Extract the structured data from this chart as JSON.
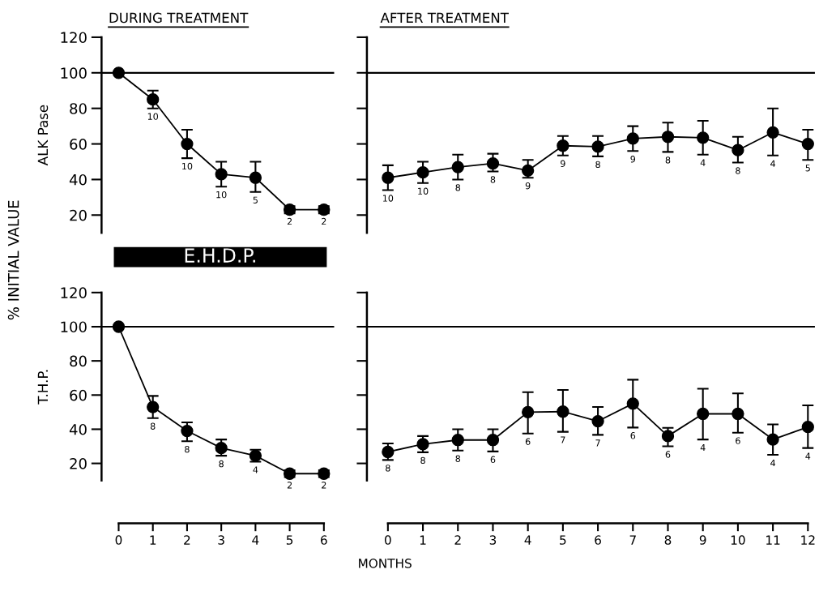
{
  "chart_data": [
    {
      "type": "line",
      "title": "DURING TREATMENT",
      "ylabel": "ALK Pase",
      "x": [
        0,
        1,
        2,
        3,
        4,
        5,
        6
      ],
      "xlim": [
        -0.5,
        6.3
      ],
      "ylim": [
        10,
        120
      ],
      "yticks": [
        20,
        40,
        60,
        80,
        100,
        120
      ],
      "tick_labels": "y",
      "marker": "circle",
      "line_style": "solid",
      "grid": false,
      "legend": false,
      "series": [
        {
          "color": "#000000",
          "values": [
            100,
            85,
            60,
            43,
            41,
            23,
            23
          ],
          "errors": [
            null,
            [
              80,
              90
            ],
            [
              52,
              68
            ],
            [
              36,
              50
            ],
            [
              33,
              50
            ],
            [
              21,
              25
            ],
            [
              21,
              25
            ]
          ]
        }
      ],
      "ref_lines": [
        {
          "axis": "y",
          "value": 100,
          "color": "#000000"
        }
      ],
      "annotations": [
        "% INITIAL VALUE",
        "MONTHS",
        "E.H.D.P.",
        {
          "text": "10",
          "x": 1,
          "y": 80
        },
        {
          "text": "10",
          "x": 2,
          "y": 52
        },
        {
          "text": "10",
          "x": 3,
          "y": 36
        },
        {
          "text": "5",
          "x": 4,
          "y": 33
        },
        {
          "text": "2",
          "x": 5,
          "y": 21
        },
        {
          "text": "2",
          "x": 6,
          "y": 21
        }
      ]
    },
    {
      "type": "line",
      "title": "AFTER TREATMENT",
      "x": [
        0,
        1,
        2,
        3,
        4,
        5,
        6,
        7,
        8,
        9,
        10,
        11,
        12
      ],
      "xlim": [
        -0.6,
        12.2
      ],
      "ylim": [
        10,
        120
      ],
      "yticks": [
        {
          "value": 20,
          "label": null
        },
        {
          "value": 40,
          "label": null
        },
        {
          "value": 60,
          "label": null
        },
        {
          "value": 80,
          "label": null
        },
        {
          "value": 100,
          "label": null
        },
        {
          "value": 120,
          "label": null
        }
      ],
      "tick_labels": false,
      "marker": "circle",
      "line_style": "solid",
      "grid": false,
      "legend": false,
      "series": [
        {
          "color": "#000000",
          "values": [
            41,
            44,
            47,
            49,
            45,
            59,
            58.5,
            63,
            64,
            63.5,
            56.5,
            66.5,
            60
          ],
          "errors": [
            [
              34,
              48
            ],
            [
              38,
              50
            ],
            [
              40,
              54
            ],
            [
              44.5,
              54.5
            ],
            [
              41,
              51
            ],
            [
              53.5,
              64.5
            ],
            [
              53,
              64.5
            ],
            [
              56,
              70
            ],
            [
              55.5,
              72
            ],
            [
              54,
              73
            ],
            [
              49.5,
              64
            ],
            [
              53.5,
              80
            ],
            [
              51,
              68
            ]
          ]
        }
      ],
      "ref_lines": [
        {
          "axis": "y",
          "value": 100,
          "color": "#000000"
        }
      ],
      "annotations": [
        {
          "text": "10",
          "x": 0,
          "y": 34
        },
        {
          "text": "10",
          "x": 1,
          "y": 38
        },
        {
          "text": "8",
          "x": 2,
          "y": 40
        },
        {
          "text": "8",
          "x": 3,
          "y": 44.5
        },
        {
          "text": "9",
          "x": 4,
          "y": 41
        },
        {
          "text": "9",
          "x": 5,
          "y": 53.5
        },
        {
          "text": "8",
          "x": 6,
          "y": 53
        },
        {
          "text": "9",
          "x": 7,
          "y": 56
        },
        {
          "text": "8",
          "x": 8,
          "y": 55.5
        },
        {
          "text": "4",
          "x": 9,
          "y": 54
        },
        {
          "text": "8",
          "x": 10,
          "y": 49.5
        },
        {
          "text": "4",
          "x": 11,
          "y": 53.5
        },
        {
          "text": "5",
          "x": 12,
          "y": 51
        }
      ]
    },
    {
      "type": "line",
      "ylabel": "T.H.P.",
      "x": [
        0,
        1,
        2,
        3,
        4,
        5,
        6
      ],
      "xlim": [
        -0.5,
        6.3
      ],
      "xticks": [
        0,
        1,
        2,
        3,
        4,
        5,
        6
      ],
      "ylim": [
        10,
        120
      ],
      "yticks": [
        20,
        40,
        60,
        80,
        100,
        120
      ],
      "marker": "circle",
      "line_style": "solid",
      "grid": false,
      "legend": false,
      "series": [
        {
          "color": "#000000",
          "values": [
            100,
            53,
            39,
            29,
            24.5,
            14,
            14
          ],
          "errors": [
            null,
            [
              46.5,
              59.5
            ],
            [
              33,
              44
            ],
            [
              24.5,
              34
            ],
            [
              21,
              28
            ],
            [
              12,
              16
            ],
            [
              12,
              16
            ]
          ]
        }
      ],
      "ref_lines": [
        {
          "axis": "y",
          "value": 100,
          "color": "#000000"
        }
      ],
      "annotations": [
        {
          "text": "8",
          "x": 1,
          "y": 46.5
        },
        {
          "text": "8",
          "x": 2,
          "y": 33
        },
        {
          "text": "8",
          "x": 3,
          "y": 24.5
        },
        {
          "text": "4",
          "x": 4,
          "y": 21
        },
        {
          "text": "2",
          "x": 5,
          "y": 12
        },
        {
          "text": "2",
          "x": 6,
          "y": 12
        }
      ]
    },
    {
      "type": "line",
      "x": [
        0,
        1,
        2,
        3,
        4,
        5,
        6,
        7,
        8,
        9,
        10,
        11,
        12
      ],
      "xlim": [
        -0.6,
        12.2
      ],
      "xticks": [
        0,
        1,
        2,
        3,
        4,
        5,
        6,
        7,
        8,
        9,
        10,
        11,
        12
      ],
      "ylim": [
        10,
        120
      ],
      "yticks": [
        {
          "value": 20,
          "label": null
        },
        {
          "value": 40,
          "label": null
        },
        {
          "value": 60,
          "label": null
        },
        {
          "value": 80,
          "label": null
        },
        {
          "value": 100,
          "label": null
        },
        {
          "value": 120,
          "label": null
        }
      ],
      "tick_labels": "x",
      "marker": "circle",
      "line_style": "solid",
      "grid": false,
      "legend": false,
      "series": [
        {
          "color": "#000000",
          "values": [
            26.7,
            31.3,
            33.7,
            33.7,
            50,
            50.3,
            44.7,
            55,
            36,
            49,
            49,
            34,
            41.3
          ],
          "errors": [
            [
              22,
              31.7
            ],
            [
              26.5,
              36
            ],
            [
              27.5,
              40
            ],
            [
              27,
              40
            ],
            [
              37.5,
              61.7
            ],
            [
              38.5,
              63
            ],
            [
              36.7,
              53
            ],
            [
              41,
              69
            ],
            [
              30,
              40.8
            ],
            [
              34,
              63.7
            ],
            [
              38,
              61
            ],
            [
              25,
              42.8
            ],
            [
              29,
              54
            ]
          ]
        }
      ],
      "ref_lines": [
        {
          "axis": "y",
          "value": 100,
          "color": "#000000"
        }
      ],
      "annotations": [
        {
          "text": "8",
          "x": 0,
          "y": 22
        },
        {
          "text": "8",
          "x": 1,
          "y": 26.5
        },
        {
          "text": "8",
          "x": 2,
          "y": 27.5
        },
        {
          "text": "6",
          "x": 3,
          "y": 27
        },
        {
          "text": "6",
          "x": 4,
          "y": 37.5
        },
        {
          "text": "7",
          "x": 5,
          "y": 38.5
        },
        {
          "text": "7",
          "x": 6,
          "y": 36.7
        },
        {
          "text": "6",
          "x": 7,
          "y": 41
        },
        {
          "text": "6",
          "x": 8,
          "y": 30
        },
        {
          "text": "4",
          "x": 9,
          "y": 34
        },
        {
          "text": "6",
          "x": 10,
          "y": 38
        },
        {
          "text": "4",
          "x": 11,
          "y": 25
        },
        {
          "text": "4",
          "x": 12,
          "y": 29
        }
      ]
    }
  ]
}
